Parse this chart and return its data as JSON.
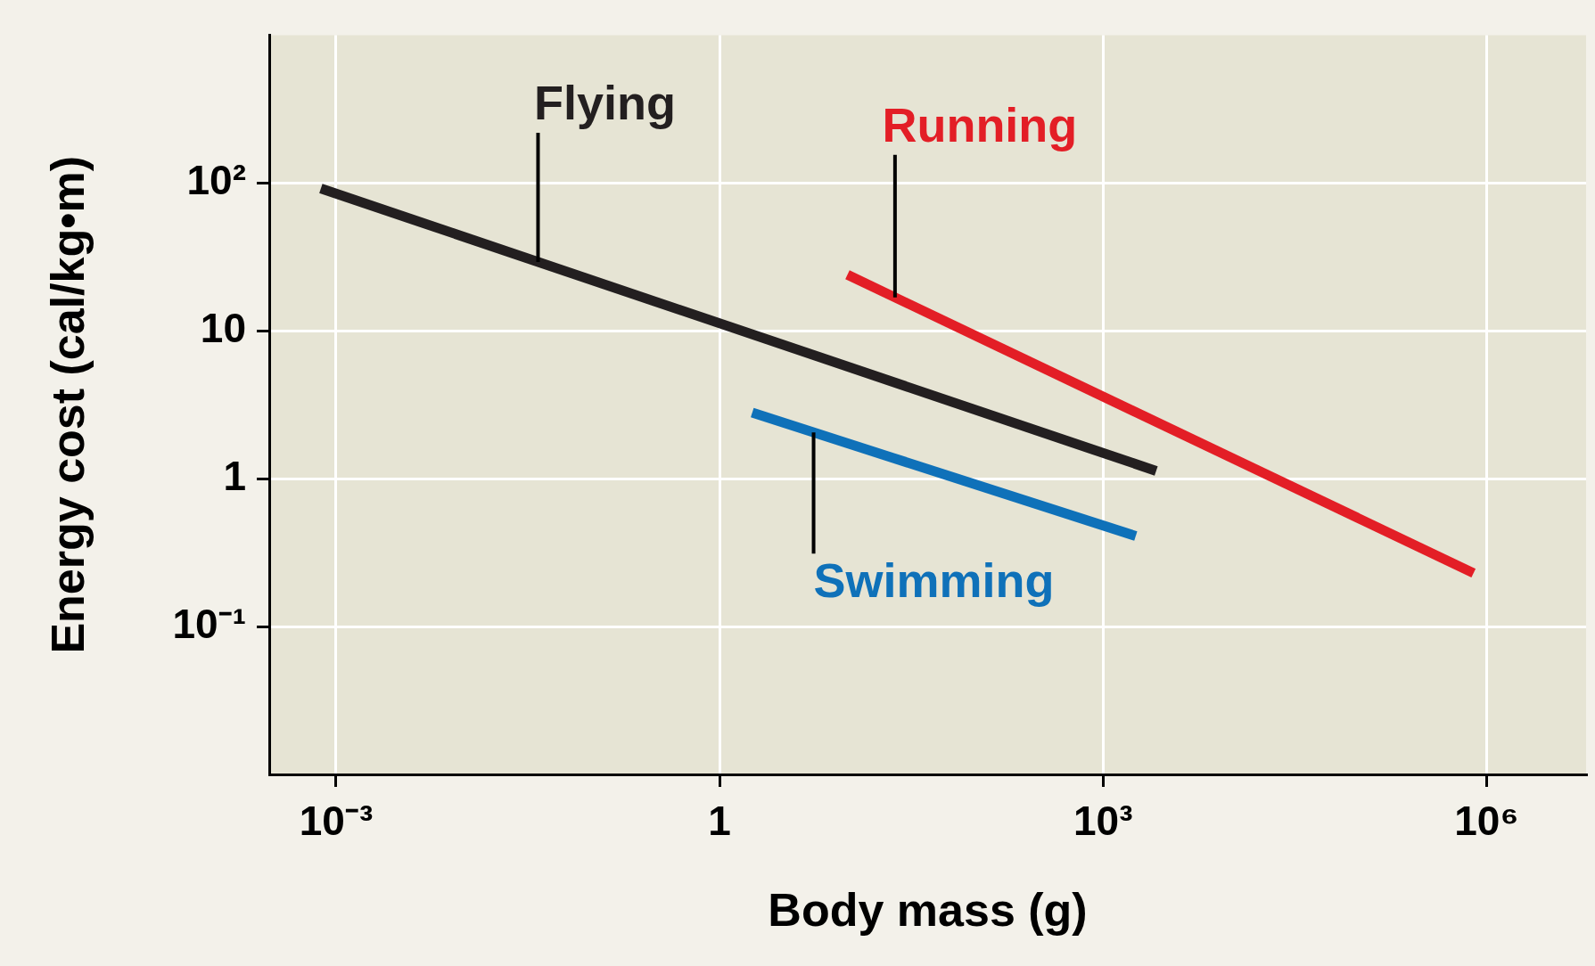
{
  "chart_data": {
    "type": "line",
    "xlabel": "Body mass (g)",
    "ylabel": "Energy cost (cal/kg•m)",
    "log": "xy",
    "grid": true,
    "xlim": [
      0.0003,
      6000000
    ],
    "ylim": [
      0.01,
      1000
    ],
    "xticks": [
      {
        "value": 0.001,
        "label": "10⁻³"
      },
      1,
      {
        "value": 1000,
        "label": "10³"
      },
      {
        "value": 1000000,
        "label": "10⁶"
      }
    ],
    "yticks": [
      {
        "value": 0.1,
        "label": "10⁻¹"
      },
      1,
      10,
      {
        "value": 100,
        "label": "10²"
      }
    ],
    "series": [
      {
        "name": "Flying",
        "color": "#231f20",
        "x": [
          0.00076,
          2600
        ],
        "values": [
          92,
          1.13
        ]
      },
      {
        "name": "Running",
        "color": "#e31e26",
        "x": [
          10,
          790000
        ],
        "values": [
          24,
          0.23
        ]
      },
      {
        "name": "Swimming",
        "color": "#0f71b9",
        "x": [
          1.8,
          1800
        ],
        "values": [
          2.8,
          0.41
        ]
      }
    ]
  }
}
